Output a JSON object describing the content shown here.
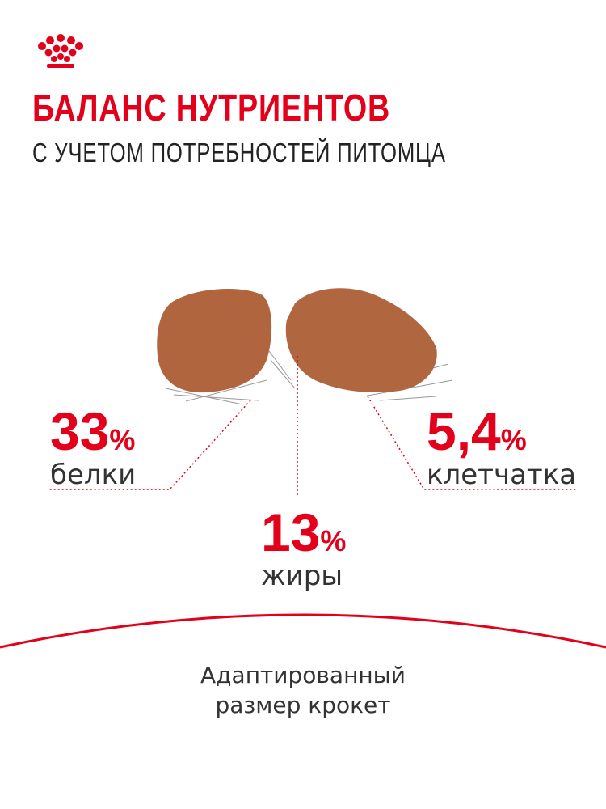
{
  "header": {
    "title": "БАЛАНС НУТРИЕНТОВ",
    "subtitle": "С УЧЕТОМ ПОТРЕБНОСТЕЙ ПИТОМЦА"
  },
  "nutrients": [
    {
      "value": "33",
      "unit": "%",
      "label": "белки"
    },
    {
      "value": "13",
      "unit": "%",
      "label": "жиры"
    },
    {
      "value": "5,4",
      "unit": "%",
      "label": "клетчатка"
    }
  ],
  "footer": {
    "lines": [
      "Адаптированный",
      "размер крокет"
    ]
  }
}
